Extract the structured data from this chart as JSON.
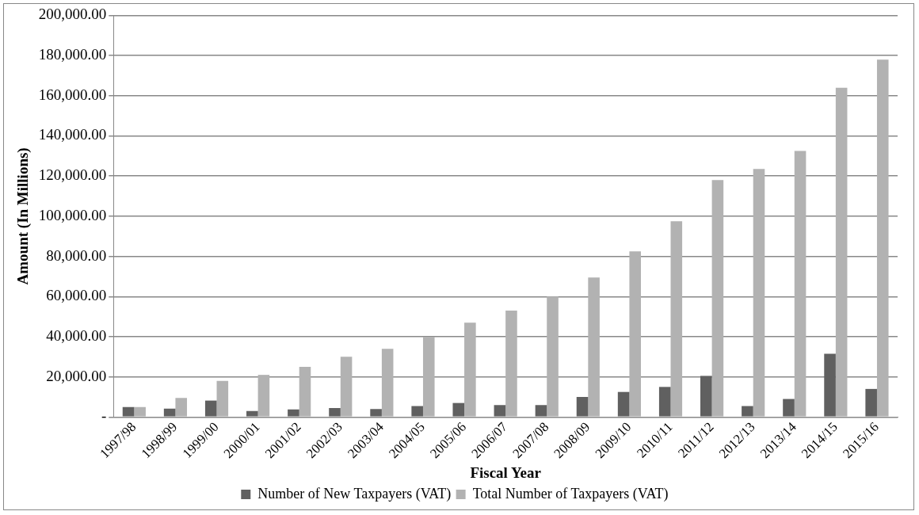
{
  "chart_data": {
    "type": "bar",
    "xlabel": "Fiscal Year",
    "ylabel": "Amount (In Millions)",
    "categories": [
      "1997/98",
      "1998/99",
      "1999/00",
      "2000/01",
      "2001/02",
      "2002/03",
      "2003/04",
      "2004/05",
      "2005/06",
      "2006/07",
      "2007/08",
      "2008/09",
      "2009/10",
      "2010/11",
      "2011/12",
      "2012/13",
      "2013/14",
      "2014/15",
      "2015/16"
    ],
    "series": [
      {
        "name": "Number of New Taxpayers (VAT)",
        "color": "#606060",
        "values": [
          5000,
          4200,
          8200,
          3000,
          3800,
          4500,
          4000,
          5500,
          7000,
          6000,
          6000,
          10000,
          12500,
          15000,
          20500,
          5500,
          9000,
          31500,
          14000
        ]
      },
      {
        "name": "Total Number of Taxpayers (VAT)",
        "color": "#b2b2b2",
        "values": [
          5000,
          9500,
          18000,
          21000,
          25000,
          30000,
          34000,
          40000,
          47000,
          53000,
          60000,
          69500,
          82500,
          97500,
          118000,
          123500,
          132500,
          164000,
          178000
        ]
      }
    ],
    "ylim": [
      0,
      200000
    ],
    "yticks": [
      {
        "value": 0,
        "label": "-"
      },
      {
        "value": 20000,
        "label": "20,000.00"
      },
      {
        "value": 40000,
        "label": "40,000.00"
      },
      {
        "value": 60000,
        "label": "60,000.00"
      },
      {
        "value": 80000,
        "label": "80,000.00"
      },
      {
        "value": 100000,
        "label": "100,000.00"
      },
      {
        "value": 120000,
        "label": "120,000.00"
      },
      {
        "value": 140000,
        "label": "140,000.00"
      },
      {
        "value": 160000,
        "label": "160,000.00"
      },
      {
        "value": 180000,
        "label": "180,000.00"
      },
      {
        "value": 200000,
        "label": "200,000.00"
      }
    ],
    "grid": "y",
    "legend": "bottom"
  }
}
